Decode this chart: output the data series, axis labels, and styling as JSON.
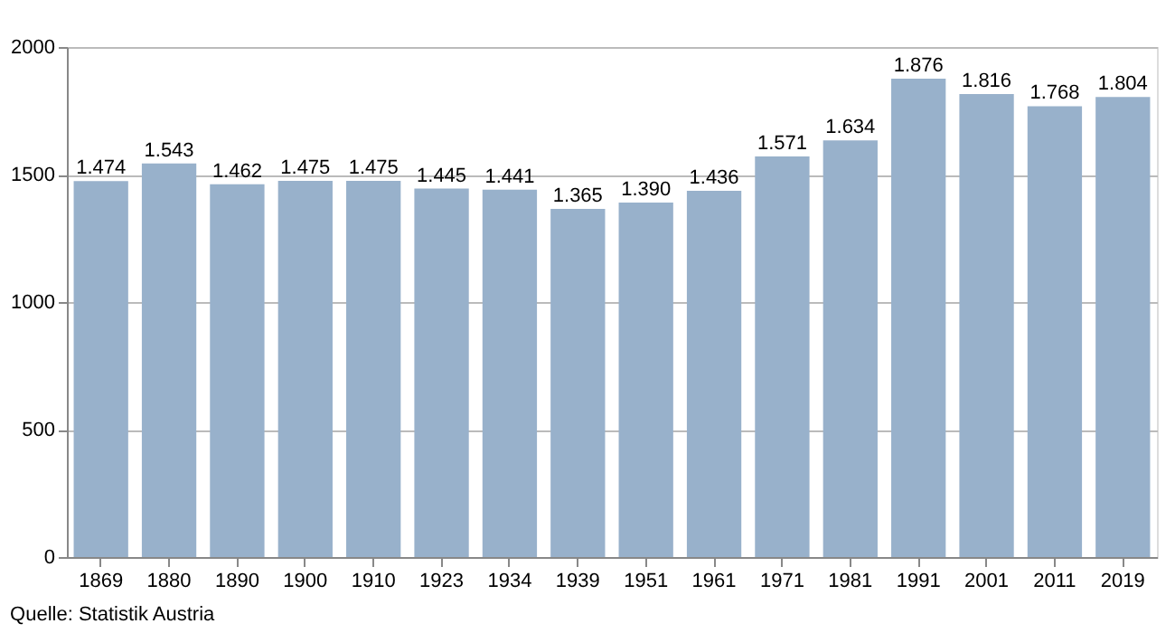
{
  "chart_data": {
    "type": "bar",
    "categories": [
      "1869",
      "1880",
      "1890",
      "1900",
      "1910",
      "1923",
      "1934",
      "1939",
      "1951",
      "1961",
      "1971",
      "1981",
      "1991",
      "2001",
      "2011",
      "2019"
    ],
    "values": [
      1474,
      1543,
      1462,
      1475,
      1475,
      1445,
      1441,
      1365,
      1390,
      1436,
      1571,
      1634,
      1876,
      1816,
      1768,
      1804
    ],
    "value_labels": [
      "1.474",
      "1.543",
      "1.462",
      "1.475",
      "1.475",
      "1.445",
      "1.441",
      "1.365",
      "1.390",
      "1.436",
      "1.571",
      "1.634",
      "1.876",
      "1.816",
      "1.768",
      "1.804"
    ],
    "color": "#98b1cb",
    "ylim": [
      0,
      2000
    ],
    "yticks": [
      0,
      500,
      1000,
      1500,
      2000
    ],
    "grid": "y",
    "annotations": [
      "Quelle: Statistik Austria"
    ]
  }
}
